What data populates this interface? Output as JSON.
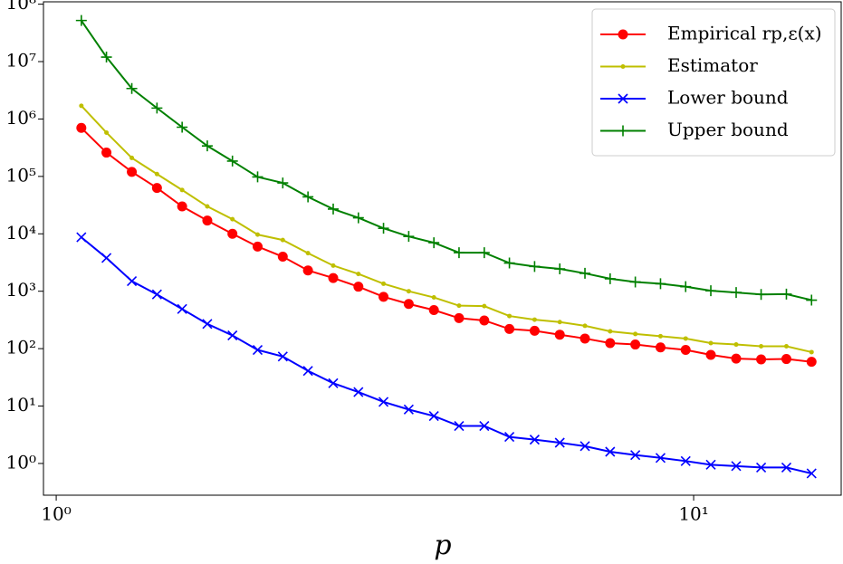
{
  "chart_data": {
    "type": "line",
    "x_label": "p",
    "log_x": true,
    "log_y": true,
    "legend": "upper right",
    "xlim": [
      0.955,
      17.04
    ],
    "ylim": [
      0.28,
      110000000
    ],
    "xticks": [
      {
        "value": 1,
        "label": "10⁰"
      },
      {
        "value": 10,
        "label": "10¹"
      }
    ],
    "yticks": [
      {
        "value": 1,
        "label": "10⁰"
      },
      {
        "value": 10,
        "label": "10¹"
      },
      {
        "value": 100,
        "label": "10²"
      },
      {
        "value": 1000,
        "label": "10³"
      },
      {
        "value": 10000,
        "label": "10⁴"
      },
      {
        "value": 100000,
        "label": "10⁵"
      },
      {
        "value": 1000000,
        "label": "10⁶"
      },
      {
        "value": 10000000,
        "label": "10⁷"
      },
      {
        "value": 100000000,
        "label": "10⁸"
      }
    ],
    "x": [
      1.095,
      1.199,
      1.314,
      1.439,
      1.576,
      1.726,
      1.89,
      2.07,
      2.267,
      2.483,
      2.72,
      2.979,
      3.262,
      3.573,
      3.913,
      4.285,
      4.694,
      5.14,
      5.63,
      6.166,
      6.753,
      7.396,
      8.1,
      8.872,
      9.716,
      10.64,
      11.66,
      12.76,
      13.98,
      15.31
    ],
    "series": [
      {
        "name": "Empirical rp,ε(x)",
        "color": "#ff0000",
        "marker": "circle",
        "values": [
          700000,
          260000,
          120000,
          63000,
          30000,
          17000,
          10000,
          6000,
          4000,
          2300,
          1700,
          1200,
          800,
          600,
          470,
          340,
          310,
          220,
          205,
          175,
          150,
          125,
          118,
          105,
          95,
          78,
          67,
          65,
          66,
          59
        ]
      },
      {
        "name": "Estimator",
        "color": "#bfbf00",
        "marker": "dot",
        "values": [
          1700000,
          580000,
          210000,
          110000,
          58000,
          30000,
          18000,
          9700,
          7800,
          4600,
          2800,
          2000,
          1350,
          1000,
          780,
          560,
          550,
          370,
          320,
          290,
          250,
          200,
          180,
          165,
          150,
          125,
          118,
          110,
          110,
          87
        ]
      },
      {
        "name": "Lower bound",
        "color": "#0000ff",
        "marker": "x",
        "values": [
          8700,
          3800,
          1500,
          880,
          490,
          270,
          170,
          95,
          73,
          41,
          25,
          17.5,
          11.8,
          8.7,
          6.7,
          4.5,
          4.5,
          2.9,
          2.6,
          2.3,
          2.0,
          1.6,
          1.4,
          1.25,
          1.1,
          0.95,
          0.9,
          0.85,
          0.85,
          0.67
        ]
      },
      {
        "name": "Upper bound",
        "color": "#008000",
        "marker": "plus",
        "values": [
          52000000,
          12000000,
          3400000,
          1550000,
          720000,
          340000,
          185000,
          98000,
          77000,
          44000,
          27000,
          19000,
          12500,
          9000,
          7000,
          4700,
          4700,
          3100,
          2700,
          2450,
          2050,
          1650,
          1450,
          1350,
          1200,
          1020,
          950,
          880,
          890,
          700
        ]
      }
    ]
  }
}
